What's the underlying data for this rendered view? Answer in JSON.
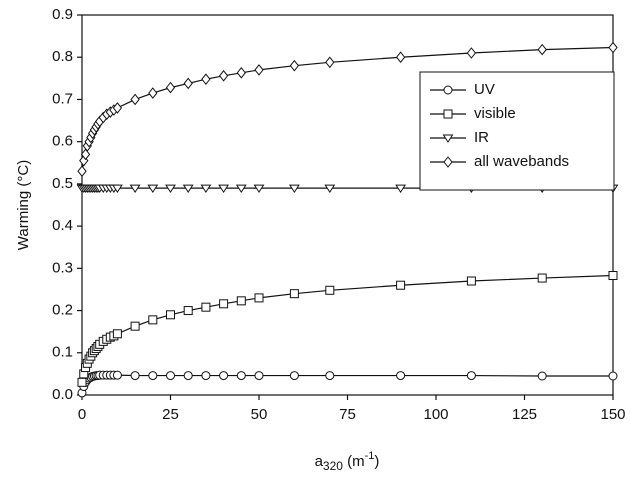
{
  "chart_data": {
    "type": "line",
    "x_label": {
      "base": "a",
      "sub": "320",
      "mid": " (m",
      "sup": "-1",
      "end": ")"
    },
    "y_label": "Warming (°C)",
    "x": [
      0,
      0.5,
      1,
      1.5,
      2,
      2.5,
      3,
      3.5,
      4,
      4.5,
      5,
      6,
      7,
      8,
      9,
      10,
      15,
      20,
      25,
      30,
      35,
      40,
      45,
      50,
      60,
      70,
      90,
      110,
      130,
      150
    ],
    "series": [
      {
        "name": "UV",
        "color": "#111111",
        "marker": "circle",
        "values": [
          0.005,
          0.02,
          0.03,
          0.036,
          0.04,
          0.042,
          0.044,
          0.045,
          0.046,
          0.046,
          0.047,
          0.047,
          0.047,
          0.047,
          0.047,
          0.047,
          0.046,
          0.046,
          0.046,
          0.046,
          0.046,
          0.046,
          0.046,
          0.046,
          0.046,
          0.046,
          0.046,
          0.046,
          0.045,
          0.045
        ]
      },
      {
        "name": "visible",
        "color": "#111111",
        "marker": "square",
        "values": [
          0.03,
          0.05,
          0.065,
          0.075,
          0.085,
          0.092,
          0.1,
          0.105,
          0.11,
          0.115,
          0.12,
          0.127,
          0.132,
          0.137,
          0.14,
          0.145,
          0.163,
          0.178,
          0.19,
          0.2,
          0.208,
          0.216,
          0.223,
          0.23,
          0.24,
          0.248,
          0.26,
          0.27,
          0.277,
          0.283
        ]
      },
      {
        "name": "IR",
        "color": "#111111",
        "marker": "triangle-down",
        "values": [
          0.49,
          0.49,
          0.49,
          0.49,
          0.49,
          0.49,
          0.49,
          0.49,
          0.49,
          0.49,
          0.49,
          0.49,
          0.49,
          0.49,
          0.49,
          0.49,
          0.49,
          0.49,
          0.49,
          0.49,
          0.49,
          0.49,
          0.49,
          0.49,
          0.49,
          0.49,
          0.49,
          0.49,
          0.49,
          0.49
        ]
      },
      {
        "name": "all wavebands",
        "color": "#111111",
        "marker": "diamond",
        "values": [
          0.53,
          0.555,
          0.57,
          0.59,
          0.6,
          0.61,
          0.62,
          0.628,
          0.635,
          0.642,
          0.648,
          0.657,
          0.665,
          0.67,
          0.675,
          0.68,
          0.7,
          0.715,
          0.728,
          0.738,
          0.748,
          0.756,
          0.763,
          0.77,
          0.78,
          0.788,
          0.8,
          0.81,
          0.818,
          0.823
        ]
      }
    ],
    "xlim": [
      0,
      150
    ],
    "xticks": [
      0,
      25,
      50,
      75,
      100,
      125,
      150
    ],
    "ylim": [
      0,
      0.9
    ],
    "yticks": [
      {
        "value": 0,
        "label": "0.0"
      },
      0.1,
      0.2,
      0.3,
      0.4,
      0.5,
      0.6,
      0.7,
      0.8,
      0.9
    ],
    "legend": "upper-right",
    "grid": false
  }
}
